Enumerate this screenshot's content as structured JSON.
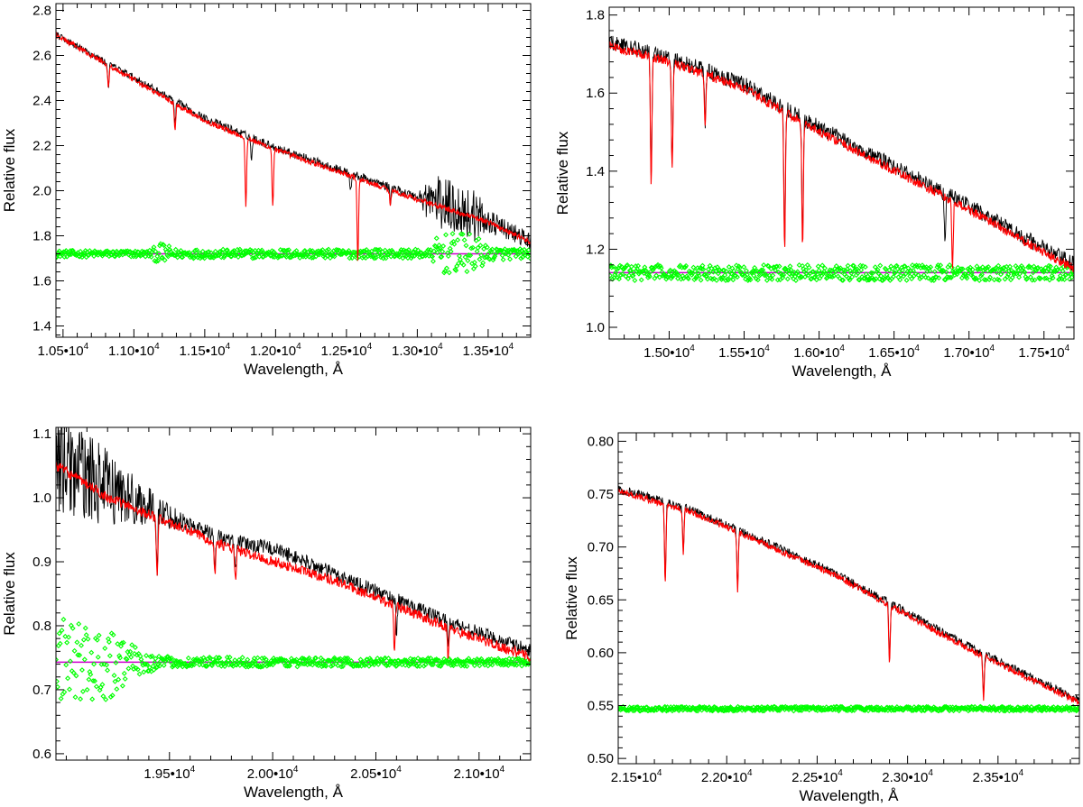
{
  "chart_data": [
    {
      "type": "line",
      "panel": "top-left",
      "xlabel": "Wavelength, Å",
      "ylabel": "Relative flux",
      "xlim": [
        10450,
        13800
      ],
      "ylim": [
        1.35,
        2.83
      ],
      "x_ticks": [
        10500,
        11000,
        11500,
        12000,
        12500,
        13000,
        13500
      ],
      "x_tick_labels": [
        {
          "mant": "1.05•10",
          "exp": "4"
        },
        {
          "mant": "1.10•10",
          "exp": "4"
        },
        {
          "mant": "1.15•10",
          "exp": "4"
        },
        {
          "mant": "1.20•10",
          "exp": "4"
        },
        {
          "mant": "1.25•10",
          "exp": "4"
        },
        {
          "mant": "1.30•10",
          "exp": "4"
        },
        {
          "mant": "1.35•10",
          "exp": "4"
        }
      ],
      "y_ticks": [
        1.4,
        1.6,
        1.8,
        2.0,
        2.2,
        2.4,
        2.6,
        2.8
      ],
      "y_tick_labels": [
        "1.4",
        "1.6",
        "1.8",
        "2.0",
        "2.2",
        "2.4",
        "2.6",
        "2.8"
      ],
      "series": [
        {
          "role": "observed",
          "color": "#000000",
          "continuum": [
            [
              10450,
              2.69
            ],
            [
              11000,
              2.5
            ],
            [
              11500,
              2.32
            ],
            [
              12000,
              2.19
            ],
            [
              12500,
              2.08
            ],
            [
              13000,
              1.97
            ],
            [
              13500,
              1.86
            ],
            [
              13800,
              1.77
            ]
          ],
          "noise": [
            [
              10450,
              0.015
            ],
            [
              13000,
              0.02
            ],
            [
              13100,
              0.12
            ],
            [
              13400,
              0.12
            ],
            [
              13500,
              0.05
            ],
            [
              13800,
              0.04
            ]
          ],
          "absorption_lines": [
            [
              10820,
              0.1
            ],
            [
              11290,
              0.1
            ],
            [
              11830,
              0.1
            ],
            [
              12530,
              0.08
            ],
            [
              12810,
              0.06
            ]
          ]
        },
        {
          "role": "model",
          "color": "#ff0000",
          "continuum": [
            [
              10450,
              2.69
            ],
            [
              11000,
              2.49
            ],
            [
              11500,
              2.31
            ],
            [
              12000,
              2.18
            ],
            [
              12500,
              2.07
            ],
            [
              13000,
              1.96
            ],
            [
              13500,
              1.86
            ],
            [
              13800,
              1.77
            ]
          ],
          "noise": [
            [
              10450,
              0.012
            ],
            [
              13800,
              0.012
            ]
          ],
          "absorption_lines": [
            [
              10820,
              0.1
            ],
            [
              11290,
              0.12
            ],
            [
              11790,
              0.3
            ],
            [
              11980,
              0.25
            ],
            [
              12580,
              0.36
            ],
            [
              12810,
              0.06
            ]
          ]
        },
        {
          "role": "residual",
          "color": "#00ff00",
          "marker": "diamond",
          "level": 1.72,
          "noise": [
            [
              10450,
              0.015
            ],
            [
              11100,
              0.015
            ],
            [
              11200,
              0.05
            ],
            [
              11300,
              0.02
            ],
            [
              13100,
              0.02
            ],
            [
              13150,
              0.09
            ],
            [
              13400,
              0.09
            ],
            [
              13500,
              0.03
            ],
            [
              13800,
              0.02
            ]
          ]
        },
        {
          "role": "baseline",
          "color": "#cc00cc",
          "level": 1.72
        }
      ]
    },
    {
      "type": "line",
      "panel": "top-right",
      "xlabel": "Wavelength, Å",
      "ylabel": "Relative flux",
      "xlim": [
        14600,
        17700
      ],
      "ylim": [
        0.97,
        1.82
      ],
      "x_ticks": [
        15000,
        15500,
        16000,
        16500,
        17000,
        17500
      ],
      "x_tick_labels": [
        {
          "mant": "1.50•10",
          "exp": "4"
        },
        {
          "mant": "1.55•10",
          "exp": "4"
        },
        {
          "mant": "1.60•10",
          "exp": "4"
        },
        {
          "mant": "1.65•10",
          "exp": "4"
        },
        {
          "mant": "1.70•10",
          "exp": "4"
        },
        {
          "mant": "1.75•10",
          "exp": "4"
        }
      ],
      "y_ticks": [
        1.0,
        1.2,
        1.4,
        1.6,
        1.8
      ],
      "y_tick_labels": [
        "1.0",
        "1.2",
        "1.4",
        "1.6",
        "1.8"
      ],
      "series": [
        {
          "role": "observed",
          "color": "#000000",
          "continuum": [
            [
              14600,
              1.73
            ],
            [
              15000,
              1.69
            ],
            [
              15500,
              1.62
            ],
            [
              16000,
              1.51
            ],
            [
              16500,
              1.41
            ],
            [
              17000,
              1.31
            ],
            [
              17500,
              1.2
            ],
            [
              17700,
              1.16
            ]
          ],
          "noise": [
            [
              14600,
              0.02
            ],
            [
              17700,
              0.02
            ]
          ],
          "absorption_lines": [
            [
              14880,
              0.34
            ],
            [
              15020,
              0.28
            ],
            [
              15240,
              0.14
            ],
            [
              15770,
              0.36
            ],
            [
              15890,
              0.32
            ],
            [
              16840,
              0.12
            ]
          ]
        },
        {
          "role": "model",
          "color": "#ff0000",
          "continuum": [
            [
              14600,
              1.72
            ],
            [
              15000,
              1.68
            ],
            [
              15500,
              1.61
            ],
            [
              16000,
              1.5
            ],
            [
              16500,
              1.4
            ],
            [
              17000,
              1.3
            ],
            [
              17500,
              1.19
            ],
            [
              17700,
              1.15
            ]
          ],
          "noise": [
            [
              14600,
              0.012
            ],
            [
              17700,
              0.012
            ]
          ],
          "absorption_lines": [
            [
              14880,
              0.34
            ],
            [
              15020,
              0.28
            ],
            [
              15240,
              0.14
            ],
            [
              15770,
              0.36
            ],
            [
              15890,
              0.32
            ],
            [
              16890,
              0.18
            ]
          ]
        },
        {
          "role": "residual",
          "color": "#00ff00",
          "marker": "diamond",
          "level": 1.14,
          "noise": [
            [
              14600,
              0.02
            ],
            [
              17700,
              0.02
            ]
          ]
        },
        {
          "role": "baseline",
          "color": "#cc00cc",
          "level": 1.14
        }
      ]
    },
    {
      "type": "line",
      "panel": "bottom-left",
      "xlabel": "Wavelength, Å",
      "ylabel": "Relative flux",
      "xlim": [
        18950,
        21250
      ],
      "ylim": [
        0.59,
        1.11
      ],
      "x_ticks": [
        19500,
        20000,
        20500,
        21000
      ],
      "x_tick_labels": [
        {
          "mant": "1.95•10",
          "exp": "4"
        },
        {
          "mant": "2.00•10",
          "exp": "4"
        },
        {
          "mant": "2.05•10",
          "exp": "4"
        },
        {
          "mant": "2.10•10",
          "exp": "4"
        }
      ],
      "y_ticks": [
        0.6,
        0.7,
        0.8,
        0.9,
        1.0,
        1.1
      ],
      "y_tick_labels": [
        "0.6",
        "0.7",
        "0.8",
        "0.9",
        "1.0",
        "1.1"
      ],
      "series": [
        {
          "role": "observed",
          "color": "#000000",
          "continuum": [
            [
              18950,
              1.05
            ],
            [
              19200,
              1.01
            ],
            [
              19500,
              0.97
            ],
            [
              19800,
              0.93
            ],
            [
              20000,
              0.92
            ],
            [
              20300,
              0.88
            ],
            [
              20600,
              0.84
            ],
            [
              20900,
              0.8
            ],
            [
              21250,
              0.76
            ]
          ],
          "noise": [
            [
              18950,
              0.08
            ],
            [
              19200,
              0.06
            ],
            [
              19400,
              0.03
            ],
            [
              19600,
              0.012
            ],
            [
              21250,
              0.01
            ]
          ],
          "absorption_lines": [
            [
              19440,
              0.08
            ],
            [
              19720,
              0.05
            ],
            [
              19820,
              0.05
            ],
            [
              20600,
              0.05
            ],
            [
              20850,
              0.04
            ]
          ]
        },
        {
          "role": "model",
          "color": "#ff0000",
          "continuum": [
            [
              18950,
              1.05
            ],
            [
              19200,
              1.0
            ],
            [
              19500,
              0.96
            ],
            [
              19800,
              0.92
            ],
            [
              20000,
              0.9
            ],
            [
              20300,
              0.87
            ],
            [
              20600,
              0.83
            ],
            [
              20900,
              0.79
            ],
            [
              21250,
              0.75
            ]
          ],
          "noise": [
            [
              18950,
              0.008
            ],
            [
              21250,
              0.008
            ]
          ],
          "absorption_lines": [
            [
              19440,
              0.09
            ],
            [
              19720,
              0.05
            ],
            [
              19820,
              0.05
            ],
            [
              20590,
              0.07
            ],
            [
              20850,
              0.05
            ]
          ]
        },
        {
          "role": "residual",
          "color": "#00ff00",
          "marker": "diamond",
          "level": 0.743,
          "noise": [
            [
              18950,
              0.07
            ],
            [
              19200,
              0.06
            ],
            [
              19350,
              0.02
            ],
            [
              19500,
              0.008
            ],
            [
              21250,
              0.006
            ]
          ]
        },
        {
          "role": "baseline",
          "color": "#cc00cc",
          "level": 0.743
        }
      ]
    },
    {
      "type": "line",
      "panel": "bottom-right",
      "xlabel": "Wavelength, Å",
      "ylabel": "Relative flux",
      "xlim": [
        21400,
        23950
      ],
      "ylim": [
        0.495,
        0.808
      ],
      "x_ticks": [
        21500,
        22000,
        22500,
        23000,
        23500
      ],
      "x_tick_labels": [
        {
          "mant": "2.15•10",
          "exp": "4"
        },
        {
          "mant": "2.20•10",
          "exp": "4"
        },
        {
          "mant": "2.25•10",
          "exp": "4"
        },
        {
          "mant": "2.30•10",
          "exp": "4"
        },
        {
          "mant": "2.35•10",
          "exp": "4"
        }
      ],
      "y_ticks": [
        0.5,
        0.55,
        0.6,
        0.65,
        0.7,
        0.75,
        0.8
      ],
      "y_tick_labels": [
        "0.50",
        "0.55",
        "0.60",
        "0.65",
        "0.70",
        "0.75",
        "0.80"
      ],
      "series": [
        {
          "role": "observed",
          "color": "#000000",
          "continuum": [
            [
              21400,
              0.755
            ],
            [
              21800,
              0.735
            ],
            [
              22200,
              0.705
            ],
            [
              22600,
              0.675
            ],
            [
              23000,
              0.637
            ],
            [
              23400,
              0.6
            ],
            [
              23700,
              0.575
            ],
            [
              23950,
              0.555
            ]
          ],
          "noise": [
            [
              21400,
              0.004
            ],
            [
              23950,
              0.004
            ]
          ],
          "absorption_lines": [
            [
              21660,
              0.075
            ],
            [
              21760,
              0.04
            ],
            [
              22060,
              0.055
            ],
            [
              22900,
              0.055
            ],
            [
              23420,
              0.04
            ]
          ]
        },
        {
          "role": "model",
          "color": "#ff0000",
          "continuum": [
            [
              21400,
              0.753
            ],
            [
              21800,
              0.733
            ],
            [
              22200,
              0.703
            ],
            [
              22600,
              0.673
            ],
            [
              23000,
              0.635
            ],
            [
              23400,
              0.598
            ],
            [
              23700,
              0.573
            ],
            [
              23950,
              0.553
            ]
          ],
          "noise": [
            [
              21400,
              0.003
            ],
            [
              23950,
              0.003
            ]
          ],
          "absorption_lines": [
            [
              21660,
              0.075
            ],
            [
              21760,
              0.04
            ],
            [
              22060,
              0.055
            ],
            [
              22900,
              0.055
            ],
            [
              23420,
              0.04
            ]
          ]
        },
        {
          "role": "residual",
          "color": "#00ff00",
          "marker": "diamond",
          "level": 0.547,
          "noise": [
            [
              21400,
              0.002
            ],
            [
              23950,
              0.002
            ]
          ]
        },
        {
          "role": "baseline",
          "color": "#cc00cc",
          "level": 0.547
        }
      ]
    }
  ]
}
